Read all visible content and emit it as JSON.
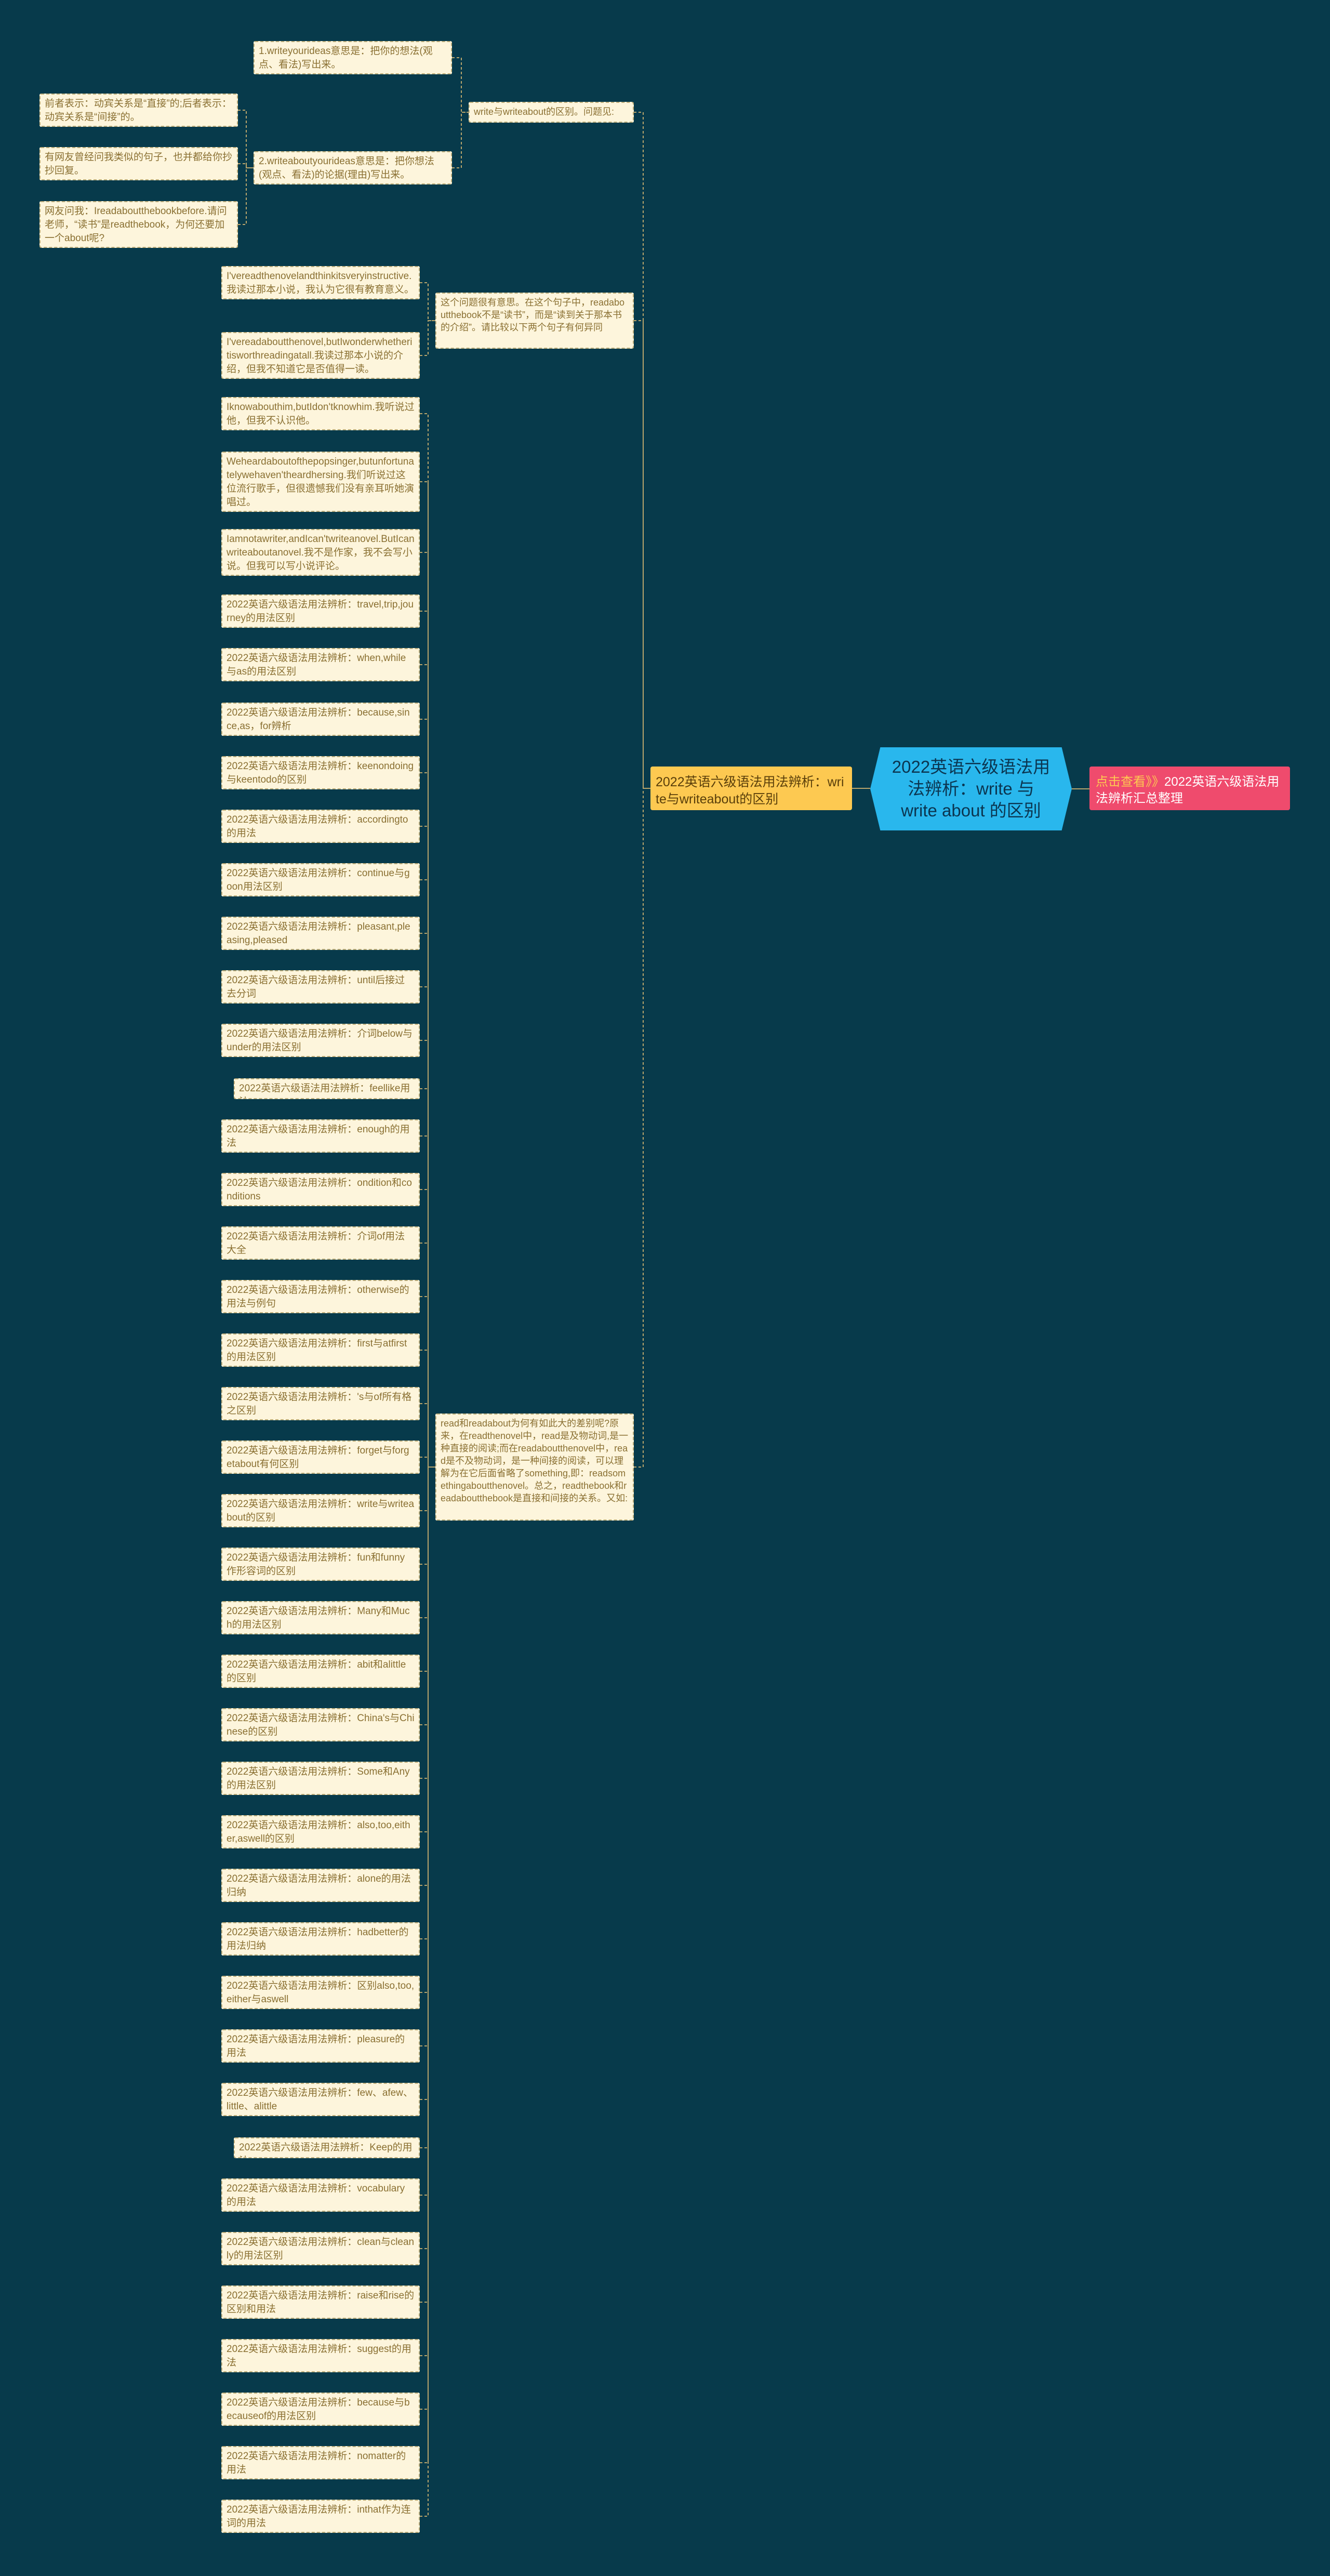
{
  "root": {
    "title": "2022英语六级语法用法辨析：write 与write about 的区别"
  },
  "link_node": {
    "arrow": "点击查看》》",
    "text": "2022英语六级语法用法辨析汇总整理"
  },
  "branch": {
    "label": "2022英语六级语法用法辨析：write与writeabout的区别"
  },
  "mid": {
    "m1": "write与writeabout的区别。问题见:",
    "m2": "这个问题很有意思。在这个句子中，readaboutthebook不是“读书”，而是“读到关于那本书的介绍”。请比较以下两个句子有何异同",
    "m3": "read和readabout为何有如此大的差别呢?原来，在readthenovel中，read是及物动词,是一种直接的阅读;而在readaboutthenovel中，read是不及物动词，是一种间接的阅读，可以理解为在它后面省略了something,即：readsomethingaboutthenovel。总之，readthebook和readaboutthebook是直接和间接的关系。又如:"
  },
  "leaves": {
    "l1": "1.writeyourideas意思是：把你的想法(观点、看法)写出来。",
    "l2": "前者表示：动宾关系是“直接”的;后者表示：动宾关系是“间接”的。",
    "l3": "有网友曾经问我类似的句子，也并都给你抄抄回复。",
    "l4": "2.writeaboutyourideas意思是：把你想法(观点、看法)的论据(理由)写出来。",
    "l5": "网友问我：Ireadaboutthebookbefore.请问老师，“读书”是readthebook，为何还要加一个about呢?",
    "l6": "I'vereadthenovelandthinkitsveryinstructive.我读过那本小说，我认为它很有教育意义。",
    "l7": "I'vereadaboutthenovel,butIwonderwhetheritisworthreadingatall.我读过那本小说的介绍，但我不知道它是否值得一读。",
    "l8": "Iknowabouthim,butIdon'tknowhim.我听说过他，但我不认识他。",
    "l9": "Weheardaboutofthepopsinger,butunfortunatelywehaven'theardhersing.我们听说过这位流行歌手，但很遗憾我们没有亲耳听她演唱过。",
    "l10": "Iamnotawriter,andIcan'twriteanovel.ButIcanwriteaboutanovel.我不是作家，我不会写小说。但我可以写小说评论。",
    "l11": "2022英语六级语法用法辨析：travel,trip,journey的用法区别",
    "l12": "2022英语六级语法用法辨析：when,while与as的用法区别",
    "l13": "2022英语六级语法用法辨析：because,since,as，for辨析",
    "l14": "2022英语六级语法用法辨析：keenondoing与keentodo的区别",
    "l15": "2022英语六级语法用法辨析：accordingto的用法",
    "l16": "2022英语六级语法用法辨析：continue与goon用法区别",
    "l17": "2022英语六级语法用法辨析：pleasant,pleasing,pleased",
    "l18": "2022英语六级语法用法辨析：until后接过去分词",
    "l19": "2022英语六级语法用法辨析：介词below与under的用法区别",
    "l20": "2022英语六级语法用法辨析：feellike用法",
    "l21": "2022英语六级语法用法辨析：enough的用法",
    "l22": "2022英语六级语法用法辨析：ondition和conditions",
    "l23": "2022英语六级语法用法辨析：介词of用法大全",
    "l24": "2022英语六级语法用法辨析：otherwise的用法与例句",
    "l25": "2022英语六级语法用法辨析：first与atfirst的用法区别",
    "l26": "2022英语六级语法用法辨析：'s与of所有格之区别",
    "l27": "2022英语六级语法用法辨析：forget与forgetabout有何区别",
    "l28": "2022英语六级语法用法辨析：write与writeabout的区别",
    "l29": "2022英语六级语法用法辨析：fun和funny作形容词的区别",
    "l30": "2022英语六级语法用法辨析：Many和Much的用法区别",
    "l31": "2022英语六级语法用法辨析：abit和alittle的区别",
    "l32": "2022英语六级语法用法辨析：China's与Chinese的区别",
    "l33": "2022英语六级语法用法辨析：Some和Any的用法区别",
    "l34": "2022英语六级语法用法辨析：also,too,either,aswell的区别",
    "l35": "2022英语六级语法用法辨析：alone的用法归纳",
    "l36": "2022英语六级语法用法辨析：hadbetter的用法归纳",
    "l37": "2022英语六级语法用法辨析：区别also,too,either与aswell",
    "l38": "2022英语六级语法用法辨析：pleasure的用法",
    "l39": "2022英语六级语法用法辨析：few、afew、little、alittle",
    "l40": "2022英语六级语法用法辨析：Keep的用法",
    "l41": "2022英语六级语法用法辨析：vocabulary的用法",
    "l42": "2022英语六级语法用法辨析：clean与cleanly的用法区别",
    "l43": "2022英语六级语法用法辨析：raise和rise的区别和用法",
    "l44": "2022英语六级语法用法辨析：suggest的用法",
    "l45": "2022英语六级语法用法辨析：because与becauseof的用法区别",
    "l46": "2022英语六级语法用法辨析：nomatter的用法",
    "l47": "2022英语六级语法用法辨析：inthat作为连词的用法"
  }
}
